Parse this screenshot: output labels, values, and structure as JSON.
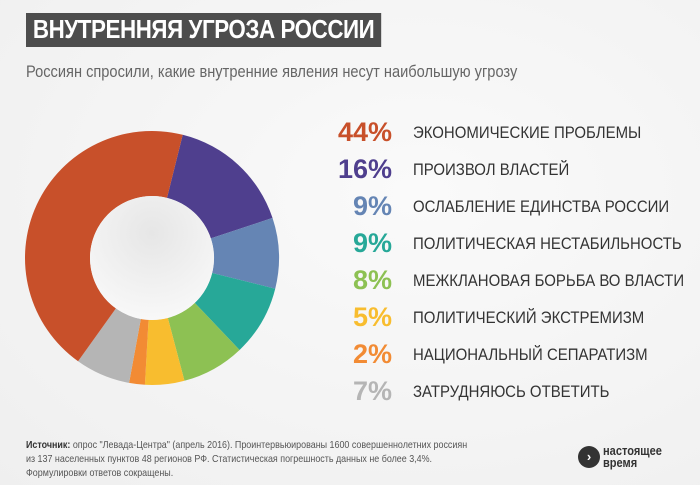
{
  "header": {
    "title": "ВНУТРЕННЯЯ УГРОЗА РОССИИ",
    "subtitle": "Россиян спросили, какие внутренние явления несут наибольшую угрозу"
  },
  "chart_data": {
    "type": "pie",
    "donut": true,
    "legend_placement": "right",
    "categories": [
      "ЭКОНОМИЧЕСКИЕ ПРОБЛЕМЫ",
      "ПРОИЗВОЛ ВЛАСТЕЙ",
      "ОСЛАБЛЕНИЕ ЕДИНСТВА РОССИИ",
      "ПОЛИТИЧЕСКАЯ НЕСТАБИЛЬНОСТЬ",
      "МЕЖКЛАНОВАЯ БОРЬБА ВО ВЛАСТИ",
      "ПОЛИТИЧЕСКИЙ ЭКСТРЕМИЗМ",
      "НАЦИОНАЛЬНЫЙ СЕПАРАТИЗМ",
      "ЗАТРУДНЯЮСЬ ОТВЕТИТЬ"
    ],
    "values": [
      44,
      16,
      9,
      9,
      8,
      5,
      2,
      7
    ],
    "labels": [
      "44%",
      "16%",
      "9%",
      "9%",
      "8%",
      "5%",
      "2%",
      "7%"
    ],
    "colors": [
      "#c8502a",
      "#4f3f8e",
      "#6585b4",
      "#27a898",
      "#8dc153",
      "#f8bd2f",
      "#f28b34",
      "#b5b5b5"
    ]
  },
  "footer": {
    "source_label": "Источник:",
    "source_line1": " опрос \"Левада-Центра\" (апрель 2016). Проинтервьюированы 1600 совершеннолетних россиян",
    "source_line2": "из 137 населенных пунктов 48 регионов РФ. Статистическая погрешность данных не более 3,4%.",
    "source_line3": "Формулировки ответов сокращены.",
    "logo_line1": "настоящее",
    "logo_line2": "время"
  }
}
